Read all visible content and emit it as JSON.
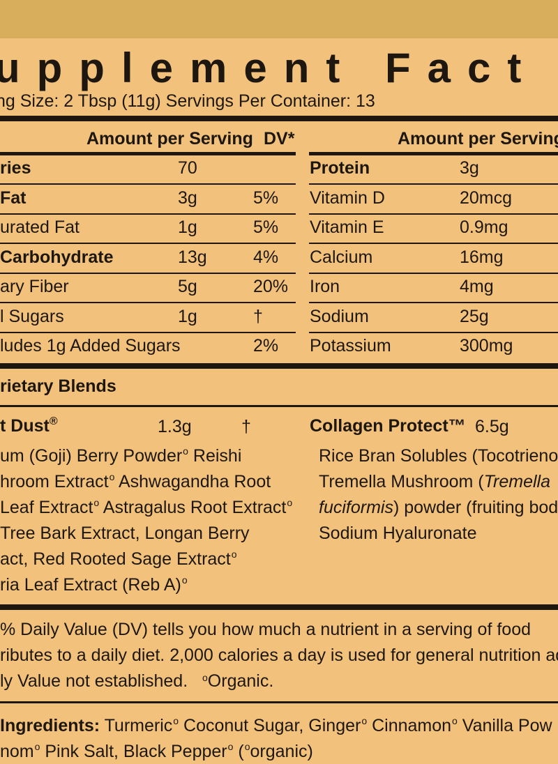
{
  "label": {
    "title": "upplement Fact",
    "serving_line": "ng Size: 2 Tbsp (11g)   Servings Per Container: 13"
  },
  "left_table": {
    "header_amount": "Amount per Serving",
    "header_dv": "DV*",
    "rows": [
      {
        "name": "ries",
        "amount": "70",
        "dv": "",
        "bold": true
      },
      {
        "name": " Fat",
        "amount": "3g",
        "dv": "5%",
        "bold": true
      },
      {
        "name": "urated Fat",
        "amount": "1g",
        "dv": "5%",
        "bold": false
      },
      {
        "name": " Carbohydrate",
        "amount": "13g",
        "dv": "4%",
        "bold": true
      },
      {
        "name": "ary Fiber",
        "amount": "5g",
        "dv": "20%",
        "bold": false
      },
      {
        "name": "l Sugars",
        "amount": "1g",
        "dv": "†",
        "bold": false
      },
      {
        "name": "ludes 1g Added Sugars",
        "amount": "",
        "dv": "2%",
        "bold": false
      }
    ]
  },
  "right_table": {
    "header_amount": "Amount per Serving",
    "rows": [
      {
        "name": "Protein",
        "amount": "3g",
        "bold": true
      },
      {
        "name": "Vitamin D",
        "amount": "20mcg",
        "bold": false
      },
      {
        "name": "Vitamin E",
        "amount": "0.9mg",
        "bold": false
      },
      {
        "name": "Calcium",
        "amount": "16mg",
        "bold": false
      },
      {
        "name": "Iron",
        "amount": "4mg",
        "bold": false
      },
      {
        "name": "Sodium",
        "amount": "25g",
        "bold": false
      },
      {
        "name": "Potassium",
        "amount": "300mg",
        "bold": false
      }
    ]
  },
  "blends": {
    "heading": "rietary Blends",
    "left": {
      "name": "t Dust",
      "reg_mark": "®",
      "amount": "1.3g",
      "dv": "†",
      "lines": [
        {
          "text": "um (Goji) Berry Powder",
          "org": "o",
          "rest": " Reishi"
        },
        {
          "text": "hroom Extract",
          "org": "o",
          "rest": " Ashwagandha Root"
        },
        {
          "text": " Leaf Extract",
          "org": "o",
          "rest": " Astragalus Root Extract",
          "org2": "o"
        },
        {
          "text": " Tree Bark Extract, Longan Berry",
          "org": "",
          "rest": ""
        },
        {
          "text": "act, Red Rooted Sage Extract",
          "org": "o",
          "rest": ""
        },
        {
          "text": "ria Leaf Extract (Reb A)",
          "org": "o",
          "rest": ""
        }
      ]
    },
    "right": {
      "name": "Collagen Protect™",
      "amount": "6.5g",
      "line1": "Rice Bran Solubles (Tocotrienols",
      "line2_a": "Tremella Mushroom (",
      "line2_b": "Tremella",
      "line3_a": "fuciformis",
      "line3_b": ") powder (fruiting bod",
      "line4": "Sodium Hyaluronate"
    }
  },
  "footnote": {
    "line1": "% Daily Value (DV) tells you how much a nutrient in a serving of food",
    "line2": "ributes to a daily diet. 2,000 calories a day is used for general nutrition ad",
    "line3a": "ly Value not established.",
    "line3_org": "o",
    "line3b": "Organic."
  },
  "ingredients": {
    "label": "Ingredients:",
    "line1": [
      {
        "t": " Turmeric",
        "o": "o"
      },
      {
        "t": " Coconut Sugar, Ginger",
        "o": "o"
      },
      {
        "t": " Cinnamon",
        "o": "o"
      },
      {
        "t": " Vanilla Pow",
        "o": ""
      }
    ],
    "line2": [
      {
        "t": "nom",
        "o": "o"
      },
      {
        "t": " Pink Salt, Black Pepper",
        "o": "o"
      },
      {
        "t": " (",
        "o": "o"
      },
      {
        "t": "organic)",
        "o": ""
      }
    ]
  }
}
